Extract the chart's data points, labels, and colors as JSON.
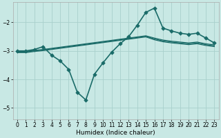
{
  "xlabel": "Humidex (Indice chaleur)",
  "background_color": "#c8e8e4",
  "grid_color": "#a8d0cc",
  "line_color": "#1a6b68",
  "xlim": [
    -0.5,
    23.5
  ],
  "ylim": [
    -5.4,
    -1.3
  ],
  "yticks": [
    -5,
    -4,
    -3,
    -2
  ],
  "xticks": [
    0,
    1,
    2,
    3,
    4,
    5,
    6,
    7,
    8,
    9,
    10,
    11,
    12,
    13,
    14,
    15,
    16,
    17,
    18,
    19,
    20,
    21,
    22,
    23
  ],
  "series": [
    {
      "x": [
        0,
        1,
        2,
        3,
        4,
        5,
        6,
        7,
        8,
        9,
        10,
        11,
        12,
        13,
        14,
        15,
        16,
        17,
        18,
        19,
        20,
        21,
        22,
        23
      ],
      "y": [
        -3.0,
        -3.0,
        -2.95,
        -2.85,
        -3.15,
        -3.35,
        -3.65,
        -4.45,
        -4.72,
        -3.82,
        -3.42,
        -3.05,
        -2.75,
        -2.5,
        -2.1,
        -1.65,
        -1.5,
        -2.2,
        -2.3,
        -2.38,
        -2.42,
        -2.38,
        -2.55,
        -2.72
      ],
      "marker": "D",
      "markersize": 2.8,
      "linewidth": 1.2
    },
    {
      "x": [
        0,
        1,
        2,
        3,
        4,
        5,
        6,
        7,
        8,
        9,
        10,
        11,
        12,
        13,
        14,
        15,
        16,
        17,
        18,
        19,
        20,
        21,
        22,
        23
      ],
      "y": [
        -3.02,
        -3.02,
        -2.98,
        -2.95,
        -2.91,
        -2.87,
        -2.83,
        -2.79,
        -2.75,
        -2.71,
        -2.67,
        -2.63,
        -2.59,
        -2.55,
        -2.51,
        -2.47,
        -2.55,
        -2.62,
        -2.66,
        -2.69,
        -2.72,
        -2.69,
        -2.75,
        -2.79
      ],
      "marker": null,
      "markersize": 0,
      "linewidth": 0.9
    },
    {
      "x": [
        0,
        1,
        2,
        3,
        4,
        5,
        6,
        7,
        8,
        9,
        10,
        11,
        12,
        13,
        14,
        15,
        16,
        17,
        18,
        19,
        20,
        21,
        22,
        23
      ],
      "y": [
        -3.04,
        -3.04,
        -3.0,
        -2.97,
        -2.93,
        -2.89,
        -2.85,
        -2.81,
        -2.77,
        -2.73,
        -2.69,
        -2.65,
        -2.61,
        -2.57,
        -2.53,
        -2.49,
        -2.58,
        -2.65,
        -2.69,
        -2.72,
        -2.75,
        -2.72,
        -2.78,
        -2.82
      ],
      "marker": null,
      "markersize": 0,
      "linewidth": 0.9
    },
    {
      "x": [
        0,
        1,
        2,
        3,
        4,
        5,
        6,
        7,
        8,
        9,
        10,
        11,
        12,
        13,
        14,
        15,
        16,
        17,
        18,
        19,
        20,
        21,
        22,
        23
      ],
      "y": [
        -3.06,
        -3.06,
        -3.02,
        -2.99,
        -2.95,
        -2.91,
        -2.87,
        -2.83,
        -2.79,
        -2.75,
        -2.71,
        -2.67,
        -2.63,
        -2.59,
        -2.55,
        -2.51,
        -2.61,
        -2.68,
        -2.72,
        -2.75,
        -2.78,
        -2.75,
        -2.81,
        -2.85
      ],
      "marker": null,
      "markersize": 0,
      "linewidth": 0.9
    }
  ]
}
